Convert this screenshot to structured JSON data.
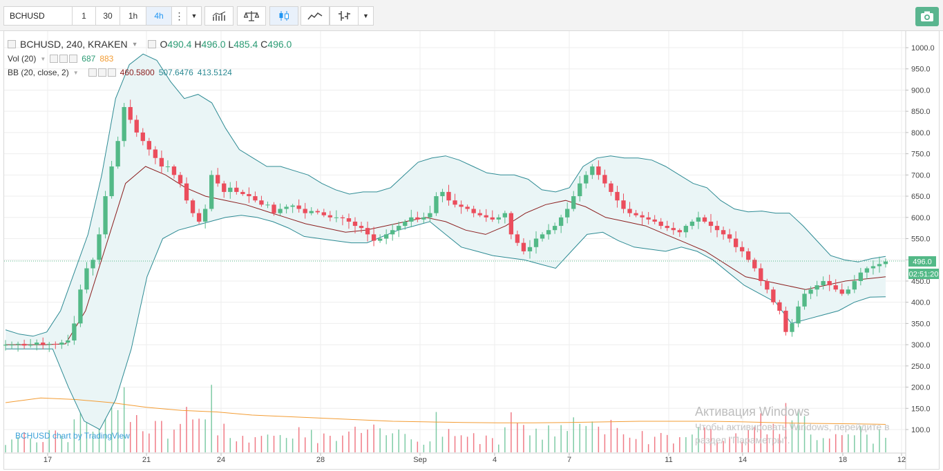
{
  "toolbar": {
    "symbol": "BCHUSD",
    "intervals": [
      "1",
      "30",
      "1h",
      "4h"
    ],
    "active_interval": "4h"
  },
  "legend": {
    "title": "BCHUSD, 240, KRAKEN",
    "o_label": "O",
    "o_value": "490.4",
    "h_label": "H",
    "h_value": "496.0",
    "l_label": "L",
    "l_value": "485.4",
    "c_label": "C",
    "c_value": "496.0",
    "vol_label": "Vol (20)",
    "vol_value": "687",
    "vol_ma_value": "883",
    "bb_label": "BB (20, close, 2)",
    "bb_basis": "460.5800",
    "bb_upper": "507.6476",
    "bb_lower": "413.5124"
  },
  "price_axis": {
    "ticks": [
      "1000.0",
      "950.0",
      "900.0",
      "850.0",
      "800.0",
      "750.0",
      "700.0",
      "650.0",
      "600.0",
      "550.0",
      "500.0",
      "450.0",
      "400.0",
      "350.0",
      "300.0",
      "250.0",
      "200.0",
      "150.0",
      "100.0"
    ],
    "last_price": "496.0",
    "countdown": "02:51:20"
  },
  "time_axis": {
    "ticks": [
      "17",
      "21",
      "24",
      "28",
      "Sep",
      "4",
      "7",
      "11",
      "14",
      "18",
      "12"
    ]
  },
  "credit": "BCHUSD chart by TradingView",
  "watermark": {
    "line1": "Активация Windows",
    "line2": "Чтобы активировать Windows, перейдите в раздел \"Параметры\"."
  },
  "colors": {
    "up": "#53b987",
    "down": "#eb4d5c",
    "bb_band": "#2c8a93",
    "bb_basis": "#8b1e1e",
    "vol_ma": "#f39c33",
    "fill": "#eaf5f6"
  },
  "chart_data": {
    "type": "candlestick",
    "symbol": "BCHUSD",
    "interval": "240",
    "exchange": "KRAKEN",
    "ylim": [
      50,
      1030
    ],
    "x_dates": [
      "Aug 17",
      "Aug 21",
      "Aug 24",
      "Aug 28",
      "Sep 1",
      "Sep 4",
      "Sep 7",
      "Sep 11",
      "Sep 14",
      "Sep 18"
    ],
    "close_series_approx": [
      300,
      300,
      302,
      298,
      300,
      305,
      300,
      302,
      300,
      305,
      310,
      350,
      430,
      480,
      500,
      560,
      650,
      720,
      780,
      860,
      830,
      800,
      780,
      760,
      740,
      720,
      720,
      700,
      680,
      640,
      610,
      590,
      620,
      700,
      680,
      660,
      670,
      660,
      655,
      650,
      640,
      630,
      630,
      610,
      620,
      625,
      628,
      620,
      610,
      615,
      612,
      605,
      600,
      600,
      598,
      590,
      580,
      575,
      560,
      545,
      550,
      560,
      570,
      580,
      590,
      600,
      595,
      600,
      610,
      650,
      660,
      640,
      630,
      625,
      620,
      610,
      605,
      600,
      595,
      600,
      610,
      560,
      540,
      520,
      530,
      550,
      560,
      570,
      580,
      600,
      620,
      650,
      680,
      700,
      720,
      700,
      680,
      660,
      640,
      620,
      610,
      605,
      600,
      595,
      590,
      580,
      575,
      570,
      565,
      580,
      590,
      600,
      590,
      580,
      570,
      560,
      550,
      530,
      520,
      500,
      480,
      450,
      430,
      400,
      380,
      330,
      350,
      390,
      420,
      430,
      440,
      450,
      440,
      430,
      420,
      430,
      450,
      470,
      480,
      485,
      490,
      496
    ],
    "bb_upper_approx": [
      335,
      325,
      320,
      330,
      380,
      470,
      560,
      700,
      880,
      960,
      985,
      970,
      920,
      880,
      890,
      870,
      810,
      760,
      740,
      720,
      720,
      710,
      700,
      680,
      665,
      655,
      660,
      660,
      670,
      700,
      730,
      740,
      745,
      735,
      720,
      705,
      700,
      700,
      690,
      665,
      660,
      670,
      720,
      740,
      745,
      740,
      740,
      735,
      720,
      700,
      680,
      670,
      640,
      620,
      613,
      615,
      610,
      610,
      580,
      545,
      510,
      500,
      495,
      503,
      508
    ],
    "bb_lower_approx": [
      290,
      290,
      290,
      290,
      200,
      120,
      100,
      170,
      290,
      460,
      550,
      570,
      580,
      590,
      600,
      605,
      600,
      590,
      575,
      555,
      550,
      545,
      540,
      540,
      555,
      570,
      580,
      590,
      560,
      530,
      520,
      510,
      505,
      500,
      490,
      480,
      520,
      560,
      565,
      545,
      530,
      525,
      520,
      530,
      520,
      500,
      470,
      440,
      420,
      400,
      350,
      360,
      370,
      380,
      400,
      412,
      413
    ],
    "bb_basis_approx": [
      300,
      300,
      300,
      302,
      380,
      530,
      680,
      720,
      700,
      670,
      650,
      640,
      630,
      615,
      600,
      585,
      575,
      565,
      570,
      580,
      590,
      600,
      590,
      570,
      560,
      580,
      610,
      630,
      640,
      625,
      600,
      590,
      580,
      560,
      540,
      520,
      490,
      460,
      450,
      440,
      430,
      440,
      450,
      455,
      460
    ],
    "volume_ma_approx": [
      160,
      175,
      170,
      160,
      145,
      135,
      130,
      120,
      115,
      110,
      105,
      100,
      98,
      96,
      95,
      95,
      96,
      98,
      100,
      100,
      100,
      98,
      95,
      93,
      92,
      90
    ]
  }
}
